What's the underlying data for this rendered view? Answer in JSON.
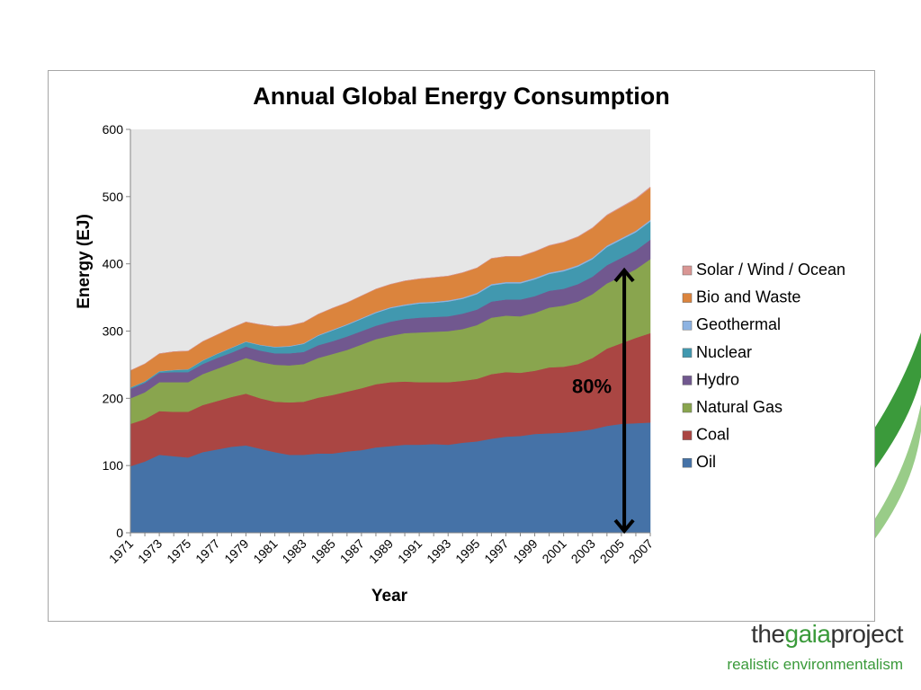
{
  "chart_data": {
    "type": "area",
    "stacked": true,
    "title": "Annual Global Energy Consumption",
    "xlabel": "Year",
    "ylabel": "Energy (EJ)",
    "ylim": [
      0,
      600
    ],
    "yticks": [
      0,
      100,
      200,
      300,
      400,
      500,
      600
    ],
    "x": [
      1971,
      1972,
      1973,
      1974,
      1975,
      1976,
      1977,
      1978,
      1979,
      1980,
      1981,
      1982,
      1983,
      1984,
      1985,
      1986,
      1987,
      1988,
      1989,
      1990,
      1991,
      1992,
      1993,
      1994,
      1995,
      1996,
      1997,
      1998,
      1999,
      2000,
      2001,
      2002,
      2003,
      2004,
      2005,
      2006,
      2007
    ],
    "xtick_labels": [
      "1971",
      "1973",
      "1975",
      "1977",
      "1979",
      "1981",
      "1983",
      "1985",
      "1987",
      "1989",
      "1991",
      "1993",
      "1995",
      "1997",
      "1999",
      "2001",
      "2003",
      "2005",
      "2007"
    ],
    "grid": false,
    "legend_position": "right",
    "series": [
      {
        "name": "Oil",
        "color": "#4572a7",
        "values": [
          99,
          106,
          116,
          114,
          112,
          120,
          124,
          128,
          130,
          125,
          120,
          116,
          116,
          118,
          118,
          121,
          123,
          127,
          129,
          131,
          131,
          132,
          131,
          134,
          136,
          140,
          143,
          144,
          147,
          148,
          149,
          151,
          154,
          159,
          162,
          163,
          164
        ]
      },
      {
        "name": "Coal",
        "color": "#aa4643",
        "values": [
          63,
          63,
          65,
          66,
          68,
          70,
          72,
          74,
          77,
          75,
          75,
          78,
          79,
          83,
          87,
          89,
          92,
          94,
          95,
          94,
          93,
          92,
          93,
          92,
          93,
          96,
          96,
          94,
          94,
          98,
          98,
          100,
          106,
          115,
          120,
          127,
          133
        ]
      },
      {
        "name": "Natural Gas",
        "color": "#89a54e",
        "values": [
          38,
          40,
          43,
          44,
          44,
          46,
          48,
          50,
          53,
          54,
          55,
          55,
          56,
          59,
          61,
          62,
          65,
          67,
          69,
          72,
          74,
          75,
          76,
          77,
          80,
          84,
          84,
          84,
          86,
          89,
          91,
          93,
          95,
          97,
          99,
          102,
          110
        ]
      },
      {
        "name": "Hydro",
        "color": "#71588f",
        "values": [
          14,
          14,
          14,
          15,
          15,
          15,
          16,
          16,
          17,
          17,
          17,
          18,
          18,
          19,
          19,
          20,
          20,
          20,
          21,
          21,
          22,
          22,
          22,
          23,
          23,
          24,
          24,
          25,
          25,
          25,
          25,
          26,
          26,
          27,
          28,
          28,
          29
        ]
      },
      {
        "name": "Nuclear",
        "color": "#4198af",
        "values": [
          2,
          2,
          2,
          3,
          4,
          5,
          6,
          7,
          7,
          8,
          9,
          10,
          12,
          14,
          16,
          17,
          18,
          19,
          20,
          20,
          21,
          21,
          22,
          22,
          23,
          24,
          24,
          24,
          25,
          25,
          26,
          26,
          26,
          27,
          27,
          27,
          27
        ]
      },
      {
        "name": "Geothermal",
        "color": "#8db3e2",
        "values": [
          0.3,
          0.3,
          0.4,
          0.4,
          0.4,
          0.5,
          0.5,
          0.6,
          0.6,
          0.7,
          0.8,
          0.9,
          1,
          1.1,
          1.2,
          1.3,
          1.4,
          1.5,
          1.5,
          1.6,
          1.7,
          1.7,
          1.8,
          1.8,
          1.9,
          2,
          2,
          2,
          2.1,
          2.1,
          2.1,
          2.2,
          2.2,
          2.2,
          2.3,
          2.3,
          2.3
        ]
      },
      {
        "name": "Bio and Waste",
        "color": "#db843d",
        "values": [
          25,
          26,
          26,
          27,
          27,
          28,
          28,
          29,
          29,
          30,
          30,
          30,
          31,
          31,
          32,
          32,
          33,
          34,
          34,
          35,
          35,
          36,
          36,
          37,
          37,
          38,
          38,
          38,
          39,
          40,
          41,
          42,
          44,
          45,
          46,
          47,
          48
        ]
      },
      {
        "name": "Solar / Wind / Ocean",
        "color": "#d99694",
        "values": [
          0,
          0,
          0,
          0,
          0,
          0,
          0,
          0,
          0,
          0,
          0,
          0,
          0,
          0,
          0,
          0,
          0,
          0,
          0.1,
          0.1,
          0.1,
          0.1,
          0.1,
          0.2,
          0.2,
          0.2,
          0.2,
          0.3,
          0.3,
          0.4,
          0.4,
          0.5,
          0.6,
          0.7,
          0.8,
          1,
          1.2
        ]
      }
    ],
    "annotation": {
      "label": "80%",
      "x": 2005.2,
      "y_from": 0,
      "y_to": 393
    }
  },
  "brand": {
    "name_part1": "the",
    "name_part2": "gaia",
    "name_part3": "project",
    "tagline": "realistic environmentalism"
  }
}
